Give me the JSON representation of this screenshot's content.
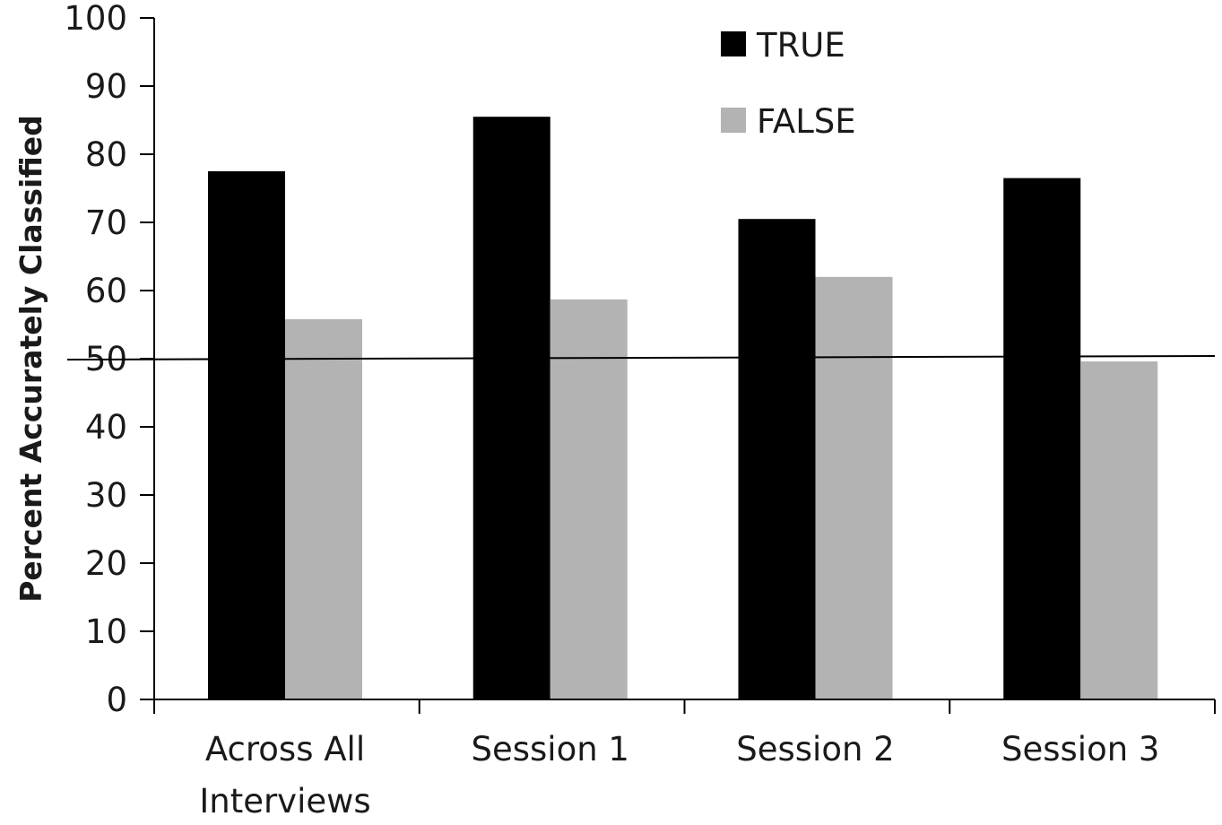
{
  "chart_data": {
    "type": "bar",
    "title": "",
    "ylabel": "Percent Accurately Classified",
    "xlabel": "",
    "ylim": [
      0,
      100
    ],
    "yticks": [
      0,
      10,
      20,
      30,
      40,
      50,
      60,
      70,
      80,
      90,
      100
    ],
    "categories": [
      [
        "Across All",
        "Interviews"
      ],
      [
        "Session 1"
      ],
      [
        "Session 2"
      ],
      [
        "Session 3"
      ]
    ],
    "series": [
      {
        "name": "TRUE",
        "color": "#000000",
        "values": [
          77.5,
          85.5,
          70.5,
          76.5
        ]
      },
      {
        "name": "FALSE",
        "color": "#b3b3b3",
        "values": [
          55.8,
          58.7,
          62.0,
          49.6
        ]
      }
    ],
    "reference_line": 50,
    "legend_position": "top-center",
    "grid": false
  }
}
